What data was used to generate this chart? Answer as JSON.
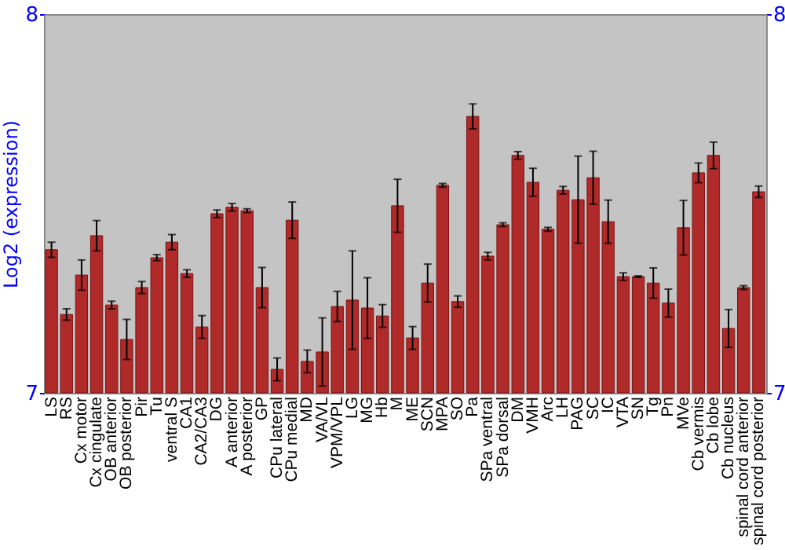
{
  "chart_data": {
    "type": "bar",
    "ylabel": "Log2 (expression)",
    "categories": [
      "LS",
      "RS",
      "Cx motor",
      "Cx cingulate",
      "OB anterior",
      "OB posterior",
      "Pir",
      "Tu",
      "ventral S",
      "CA1",
      "CA2/CA3",
      "DG",
      "A anterior",
      "A posterior",
      "GP",
      "CPu lateral",
      "CPu medial",
      "MD",
      "VA/VL",
      "VPM/VPL",
      "LG",
      "MG",
      "Hb",
      "M",
      "ME",
      "SCN",
      "MPA",
      "SO",
      "Pa",
      "SPa ventral",
      "SPa dorsal",
      "DM",
      "VMH",
      "Arc",
      "LH",
      "PAG",
      "SC",
      "IC",
      "VTA",
      "SN",
      "Tg",
      "Pn",
      "MVe",
      "Cb vermis",
      "Cb lobe",
      "Cb nucleus",
      "spinal cord anterior",
      "spinal cord posterior"
    ],
    "values": [
      7.378,
      7.207,
      7.311,
      7.415,
      7.232,
      7.141,
      7.278,
      7.357,
      7.398,
      7.315,
      7.174,
      7.473,
      7.49,
      7.481,
      7.278,
      7.062,
      7.456,
      7.083,
      7.108,
      7.228,
      7.245,
      7.224,
      7.203,
      7.494,
      7.145,
      7.29,
      7.548,
      7.241,
      7.73,
      7.361,
      7.444,
      7.627,
      7.556,
      7.432,
      7.535,
      7.51,
      7.568,
      7.452,
      7.307,
      7.307,
      7.29,
      7.237,
      7.436,
      7.581,
      7.627,
      7.17,
      7.278,
      7.531
    ],
    "errors": [
      0.02,
      0.015,
      0.04,
      0.04,
      0.01,
      0.053,
      0.016,
      0.008,
      0.02,
      0.01,
      0.03,
      0.01,
      0.01,
      0.005,
      0.053,
      0.03,
      0.048,
      0.03,
      0.09,
      0.04,
      0.13,
      0.08,
      0.03,
      0.07,
      0.03,
      0.05,
      0.005,
      0.015,
      0.033,
      0.01,
      0.005,
      0.01,
      0.037,
      0.005,
      0.01,
      0.115,
      0.07,
      0.057,
      0.01,
      0.002,
      0.04,
      0.037,
      0.072,
      0.026,
      0.035,
      0.05,
      0.005,
      0.015
    ],
    "color": "#b02a2a",
    "ylim": [
      7,
      8
    ],
    "yticks": [
      7,
      8
    ],
    "y2lim": [
      7,
      8
    ],
    "y2ticks": [
      7,
      8
    ],
    "grid": false
  }
}
